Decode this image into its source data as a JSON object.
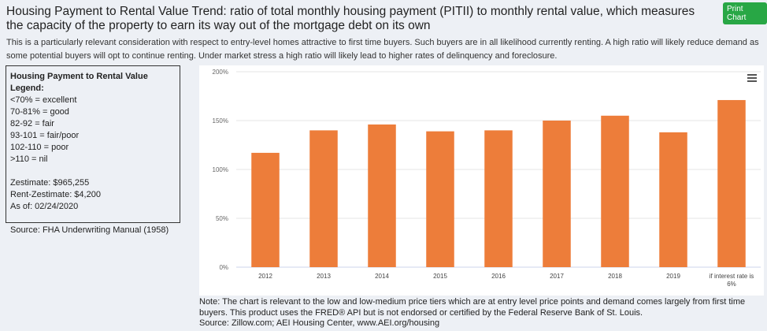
{
  "title": "Housing Payment to Rental Value Trend: ratio of total monthly housing payment (PITII) to monthly rental value, which measures the capacity of the property to earn its way out of the mortgage debt on its own",
  "print_button": "Print Chart",
  "description": "This is a particularly relevant consideration with respect to entry-level homes attractive to first time buyers. Such buyers are in all likelihood currently renting. A high ratio will likely reduce demand as some potential buyers will opt to continue renting. Under market stress a high ratio will likely lead to higher rates of delinquency and foreclosure.",
  "legend": {
    "heading": "Housing Payment to Rental Value Legend:",
    "items": [
      "<70% = excellent",
      "70-81% = good",
      "82-92 = fair",
      "93-101 = fair/poor",
      "102-110 = poor",
      ">110 = nil"
    ],
    "zestimate": "Zestimate: $965,255",
    "rent_zestimate": "Rent-Zestimate: $4,200",
    "as_of": "As of: 02/24/2020",
    "source": "Source: FHA Underwriting Manual (1958)"
  },
  "note": "Note: The chart is relevant to the low and low-medium price tiers which are at entry level price points and demand comes largely from first time buyers. This product uses the FRED® API but is not endorsed or certified by the Federal Reserve Bank of St. Louis.",
  "source": "Source: Zillow.com; AEI Housing Center, www.AEI.org/housing",
  "chart_data": {
    "type": "bar",
    "categories": [
      "2012",
      "2013",
      "2014",
      "2015",
      "2016",
      "2017",
      "2018",
      "2019",
      "if interest rate is 6%"
    ],
    "values": [
      117,
      140,
      146,
      139,
      140,
      150,
      155,
      138,
      171
    ],
    "ylim": [
      0,
      200
    ],
    "yticks": [
      "0%",
      "50%",
      "100%",
      "150%",
      "200%"
    ],
    "grid": true,
    "color": "#ed7d3a",
    "menu_icon": "hamburger-icon"
  }
}
